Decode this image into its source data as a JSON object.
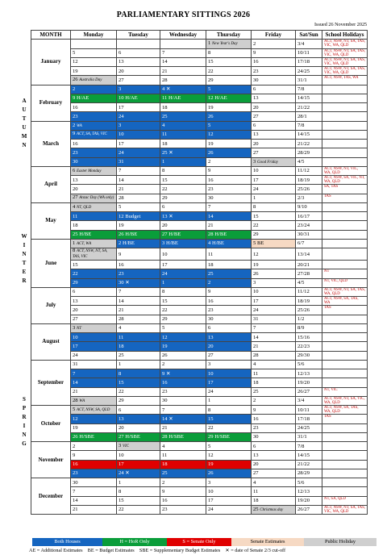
{
  "title": "PARLIAMENTARY SITTINGS 2026",
  "issued": "Issued 26 November 2025",
  "seasons": {
    "autumn": [
      "A",
      "U",
      "T",
      "U",
      "M",
      "N"
    ],
    "winter": [
      "W",
      "I",
      "N",
      "T",
      "E",
      "R"
    ],
    "spring": [
      "S",
      "P",
      "R",
      "I",
      "N",
      "G"
    ]
  },
  "headers": [
    "MONTH",
    "Monday",
    "Tuesday",
    "Wednesday",
    "Thursday",
    "Friday",
    "Sat/Sun",
    "School Holidays"
  ],
  "months": [
    {
      "name": "January",
      "weeks": [
        {
          "cells": [
            "",
            "",
            "",
            "1|New Year's Day",
            "2",
            "3/4"
          ],
          "hol": "ACT, NSW, NT, SA, TAS, VIC, WA, QLD"
        },
        {
          "cells": [
            "5",
            "6",
            "7",
            "8",
            "9",
            "10/11"
          ],
          "hol": "ACT, NSW, NT, SA, TAS, VIC, WA, QLD"
        },
        {
          "cells": [
            "12",
            "13",
            "14",
            "15",
            "16",
            "17/18"
          ],
          "hol": "ACT, NSW, NT, SA, TAS, VIC, WA, QLD"
        },
        {
          "cells": [
            "19",
            "20",
            "21",
            "22",
            "23",
            "24/25"
          ],
          "hol": "ACT, NSW, NT, SA, TAS, VIC, WA, QLD"
        },
        {
          "cells": [
            "26|Australia Day",
            "27",
            "28",
            "29",
            "30",
            "31/1"
          ],
          "hol": "ACT, NSW, TAS, WA"
        }
      ]
    },
    {
      "name": "February",
      "weeks": [
        {
          "cells": [
            "2",
            "3",
            "4 ✕",
            "5",
            "6",
            "7/8"
          ],
          "hol": ""
        },
        {
          "cells": [
            "9 H/AE",
            "10 H/AE",
            "11 H/AE",
            "12 H/AE",
            "13",
            "14/15"
          ],
          "hol": ""
        },
        {
          "cells": [
            "16",
            "17",
            "18",
            "19",
            "20",
            "21/22"
          ],
          "hol": ""
        },
        {
          "cells": [
            "23",
            "24",
            "25",
            "26",
            "27",
            "28/1"
          ],
          "hol": ""
        }
      ]
    },
    {
      "name": "March",
      "weeks": [
        {
          "cells": [
            "2|WA",
            "3",
            "4",
            "5",
            "6",
            "7/8"
          ],
          "hol": ""
        },
        {
          "cells": [
            "9|ACT, SA, TAS, VIC",
            "10",
            "11",
            "12",
            "13",
            "14/15"
          ],
          "hol": ""
        },
        {
          "cells": [
            "16",
            "17",
            "18",
            "19",
            "20",
            "21/22"
          ],
          "hol": ""
        },
        {
          "cells": [
            "23",
            "24",
            "25 ✕",
            "26",
            "27",
            "28/29"
          ],
          "hol": ""
        },
        {
          "cells": [
            "30",
            "31",
            "1",
            "2",
            "3|Good Friday",
            "4/5"
          ],
          "hol": ""
        }
      ]
    },
    {
      "name": "April",
      "weeks": [
        {
          "cells": [
            "6|Easter Monday",
            "7",
            "8",
            "9",
            "10",
            "11/12"
          ],
          "hol": "ACT, NSW, NT, VIC, WA, QLD"
        },
        {
          "cells": [
            "13",
            "14",
            "15",
            "16",
            "17",
            "18/19"
          ],
          "hol": "ACT, NSW, SA, VIC, NT, WA, QLD"
        },
        {
          "cells": [
            "20",
            "21",
            "22",
            "23",
            "24",
            "25/26"
          ],
          "hol": "SA, TAS"
        },
        {
          "cells": [
            "27|Anzac Day (WA only)",
            "28",
            "29",
            "30",
            "1",
            "2/3"
          ],
          "hol": "TAS"
        }
      ]
    },
    {
      "name": "May",
      "weeks": [
        {
          "cells": [
            "4|NT, QLD",
            "5",
            "6",
            "7",
            "8",
            "9/10"
          ],
          "hol": ""
        },
        {
          "cells": [
            "11",
            "12 Budget",
            "13 ✕",
            "14",
            "15",
            "16/17"
          ],
          "hol": ""
        },
        {
          "cells": [
            "18",
            "19",
            "20",
            "21",
            "22",
            "23/24"
          ],
          "hol": ""
        },
        {
          "cells": [
            "25 H/BE",
            "26 H/BE",
            "27 H/BE",
            "28 H/BE",
            "29",
            "30/31"
          ],
          "hol": ""
        }
      ]
    },
    {
      "name": "June",
      "weeks": [
        {
          "cells": [
            "1|ACT, WA",
            "2 H/BE",
            "3 H/BE",
            "4 H/BE",
            "5 BE",
            "6/7"
          ],
          "hol": ""
        },
        {
          "cells": [
            "8|ACT, NSW, NT, SA, TAS, VIC",
            "9",
            "10",
            "11",
            "12",
            "13/14"
          ],
          "hol": ""
        },
        {
          "cells": [
            "15",
            "16",
            "17",
            "18",
            "19",
            "20/21"
          ],
          "hol": ""
        },
        {
          "cells": [
            "22",
            "23",
            "24",
            "25",
            "26",
            "27/28"
          ],
          "hol": "NT"
        },
        {
          "cells": [
            "29",
            "30 ✕",
            "1",
            "2",
            "3",
            "4/5"
          ],
          "hol": "NT, VIC, QLD"
        }
      ]
    },
    {
      "name": "July",
      "weeks": [
        {
          "cells": [
            "6",
            "7",
            "8",
            "9",
            "10",
            "11/12"
          ],
          "hol": "ACT, NSW, NT, SA, TAS, WA, QLD"
        },
        {
          "cells": [
            "13",
            "14",
            "15",
            "16",
            "17",
            "18/19"
          ],
          "hol": "ACT, NSW, SA, TAS, WA"
        },
        {
          "cells": [
            "20",
            "21",
            "22",
            "23",
            "24",
            "25/26"
          ],
          "hol": "TAS"
        },
        {
          "cells": [
            "27",
            "28",
            "29",
            "30",
            "31",
            "1/2"
          ],
          "hol": ""
        }
      ]
    },
    {
      "name": "August",
      "weeks": [
        {
          "cells": [
            "3|NT",
            "4",
            "5",
            "6",
            "7",
            "8/9"
          ],
          "hol": ""
        },
        {
          "cells": [
            "10",
            "11",
            "12",
            "13",
            "14",
            "15/16"
          ],
          "hol": ""
        },
        {
          "cells": [
            "17",
            "18",
            "19",
            "20",
            "21",
            "22/23"
          ],
          "hol": ""
        },
        {
          "cells": [
            "24",
            "25",
            "26",
            "27",
            "28",
            "29/30"
          ],
          "hol": ""
        }
      ]
    },
    {
      "name": "September",
      "weeks": [
        {
          "cells": [
            "31",
            "1",
            "2",
            "3",
            "4",
            "5/6"
          ],
          "hol": ""
        },
        {
          "cells": [
            "7",
            "8",
            "9 ✕",
            "10",
            "11",
            "12/13"
          ],
          "hol": ""
        },
        {
          "cells": [
            "14",
            "15",
            "16",
            "17",
            "18",
            "19/20"
          ],
          "hol": ""
        },
        {
          "cells": [
            "21",
            "22",
            "23",
            "24",
            "25",
            "26/27"
          ],
          "hol": "NT, VIC"
        },
        {
          "cells": [
            "28|WA",
            "29",
            "30",
            "1",
            "2",
            "3/4"
          ],
          "hol": "ACT, NSW, NT, SA, VIC, WA, QLD"
        }
      ]
    },
    {
      "name": "October",
      "weeks": [
        {
          "cells": [
            "5|ACT, NSW, SA, QLD",
            "6",
            "7",
            "8",
            "9",
            "10/11"
          ],
          "hol": "ACT, NSW, SA, TAS, WA, QLD"
        },
        {
          "cells": [
            "12",
            "13",
            "14 ✕",
            "15",
            "16",
            "17/18"
          ],
          "hol": "TAS"
        },
        {
          "cells": [
            "19",
            "20",
            "21",
            "22",
            "23",
            "24/25"
          ],
          "hol": ""
        },
        {
          "cells": [
            "26 H/SBE",
            "27 H/SBE",
            "28 H/SBE",
            "29 H/SBE",
            "30",
            "31/1"
          ],
          "hol": ""
        }
      ]
    },
    {
      "name": "November",
      "weeks": [
        {
          "cells": [
            "2",
            "3|VIC",
            "4",
            "5",
            "6",
            "7/8"
          ],
          "hol": ""
        },
        {
          "cells": [
            "9",
            "10",
            "11",
            "12",
            "13",
            "14/15"
          ],
          "hol": ""
        },
        {
          "cells": [
            "16",
            "17",
            "18",
            "19",
            "20",
            "21/22"
          ],
          "hol": ""
        },
        {
          "cells": [
            "23",
            "24 ✕",
            "25",
            "26",
            "27",
            "28/29"
          ],
          "hol": ""
        }
      ]
    },
    {
      "name": "December",
      "weeks": [
        {
          "cells": [
            "30",
            "1",
            "2",
            "3",
            "4",
            "5/6"
          ],
          "hol": ""
        },
        {
          "cells": [
            "7",
            "8",
            "9",
            "10",
            "11",
            "12/13"
          ],
          "hol": ""
        },
        {
          "cells": [
            "14",
            "15",
            "16",
            "17",
            "18",
            "19/20"
          ],
          "hol": "NT, SA, QLD"
        },
        {
          "cells": [
            "21",
            "22",
            "23",
            "24",
            "25|Christmas day",
            "26/27"
          ],
          "hol": "ACT, NSW, NT, SA, TAS, VIC, WA, QLD"
        }
      ]
    }
  ],
  "legend": {
    "both": "Both Houses",
    "hor": "H = HoR Only",
    "senate": "S = Senate Only",
    "estimates": "Senate Estimates",
    "public": "Public Holiday"
  },
  "abbreviations": {
    "ae": "AE = Additional Estimates",
    "be": "BE = Budget Estimates",
    "sbe": "SBE = Supplementary Budget Estimates",
    "cutoff": "✕ = date of Senate 2/3 cut-off"
  },
  "colors": {
    "both_houses": "#1565c0",
    "hor_only": "#0a9d3a",
    "senate_only": "#e00000",
    "senate_estimates": "#f6d9c3",
    "public_holiday": "#cfcfcf",
    "school_holiday_text": "#c00000"
  }
}
